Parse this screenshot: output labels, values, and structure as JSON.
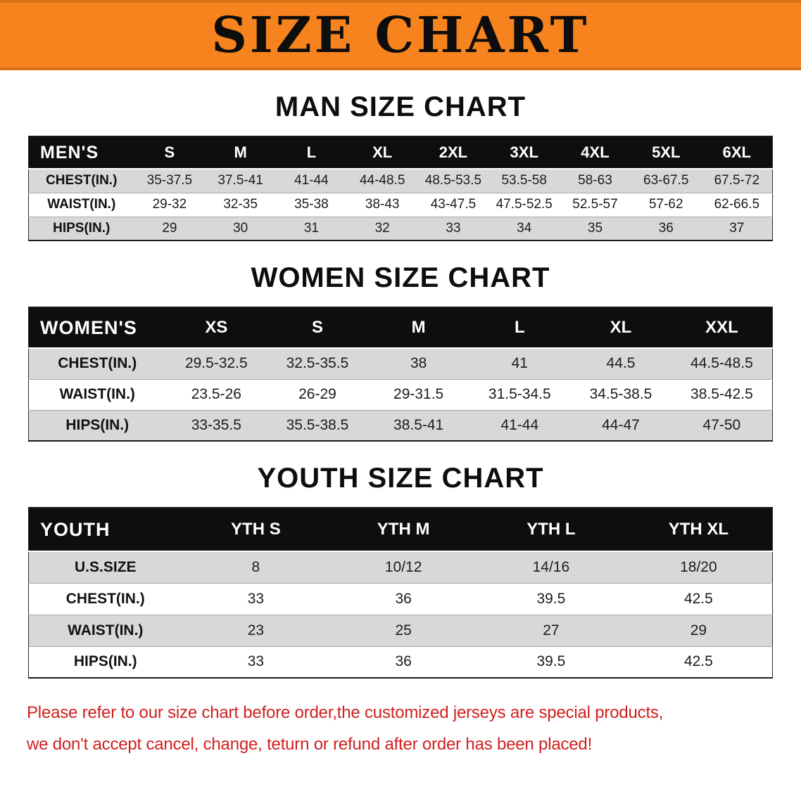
{
  "banner": {
    "title": "SIZE CHART",
    "bg_color": "#f6831d"
  },
  "sections": [
    {
      "heading": "MAN SIZE CHART",
      "table": {
        "name": "mens-size-table",
        "header": [
          "MEN'S",
          "S",
          "M",
          "L",
          "XL",
          "2XL",
          "3XL",
          "4XL",
          "5XL",
          "6XL"
        ],
        "rows": [
          [
            "CHEST(IN.)",
            "35-37.5",
            "37.5-41",
            "41-44",
            "44-48.5",
            "48.5-53.5",
            "53.5-58",
            "58-63",
            "63-67.5",
            "67.5-72"
          ],
          [
            "WAIST(IN.)",
            "29-32",
            "32-35",
            "35-38",
            "38-43",
            "43-47.5",
            "47.5-52.5",
            "52.5-57",
            "57-62",
            "62-66.5"
          ],
          [
            "HIPS(IN.)",
            "29",
            "30",
            "31",
            "32",
            "33",
            "34",
            "35",
            "36",
            "37"
          ]
        ]
      }
    },
    {
      "heading": "WOMEN SIZE CHART",
      "table": {
        "name": "womens-size-table",
        "header": [
          "WOMEN'S",
          "XS",
          "S",
          "M",
          "L",
          "XL",
          "XXL"
        ],
        "rows": [
          [
            "CHEST(IN.)",
            "29.5-32.5",
            "32.5-35.5",
            "38",
            "41",
            "44.5",
            "44.5-48.5"
          ],
          [
            "WAIST(IN.)",
            "23.5-26",
            "26-29",
            "29-31.5",
            "31.5-34.5",
            "34.5-38.5",
            "38.5-42.5"
          ],
          [
            "HIPS(IN.)",
            "33-35.5",
            "35.5-38.5",
            "38.5-41",
            "41-44",
            "44-47",
            "47-50"
          ]
        ]
      }
    },
    {
      "heading": "YOUTH SIZE CHART",
      "table": {
        "name": "youth-size-table",
        "header": [
          "YOUTH",
          "YTH S",
          "YTH M",
          "YTH L",
          "YTH XL"
        ],
        "rows": [
          [
            "U.S.SIZE",
            "8",
            "10/12",
            "14/16",
            "18/20"
          ],
          [
            "CHEST(IN.)",
            "33",
            "36",
            "39.5",
            "42.5"
          ],
          [
            "WAIST(IN.)",
            "23",
            "25",
            "27",
            "29"
          ],
          [
            "HIPS(IN.)",
            "33",
            "36",
            "39.5",
            "42.5"
          ]
        ]
      }
    }
  ],
  "notice": {
    "color": "#d02020",
    "lines": [
      "Please refer to our size chart before order,the customized jerseys are special products,",
      "we don't accept cancel, change, teturn or refund after order has been placed!"
    ]
  }
}
